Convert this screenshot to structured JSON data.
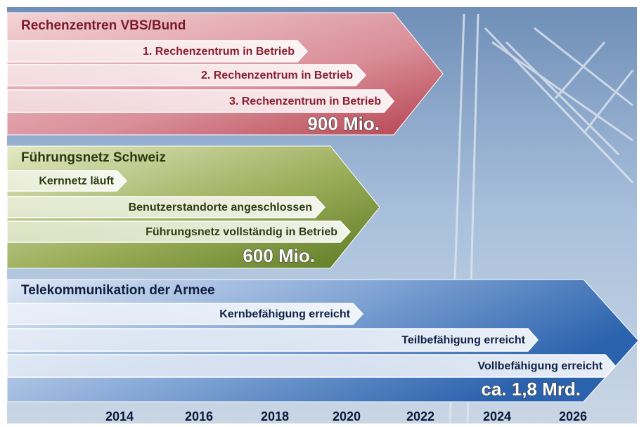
{
  "groups": [
    {
      "title": "Rechenzentren VBS/Bund",
      "milestones": [
        "1. Rechenzentrum in Betrieb",
        "2. Rechenzentrum in Betrieb",
        "3. Rechenzentrum in Betrieb"
      ],
      "cost": "900 Mio."
    },
    {
      "title": "Führungsnetz Schweiz",
      "milestones": [
        "Kernnetz läuft",
        "Benutzerstandorte angeschlossen",
        "Führungsnetz vollständig in Betrieb"
      ],
      "cost": "600 Mio."
    },
    {
      "title": "Telekommunikation der Armee",
      "milestones": [
        "Kernbefähigung erreicht",
        "Teilbefähigung erreicht",
        "Vollbefähigung erreicht"
      ],
      "cost": "ca. 1,8 Mrd."
    }
  ],
  "years": [
    2014,
    2016,
    2018,
    2020,
    2022,
    2024,
    2026
  ]
}
